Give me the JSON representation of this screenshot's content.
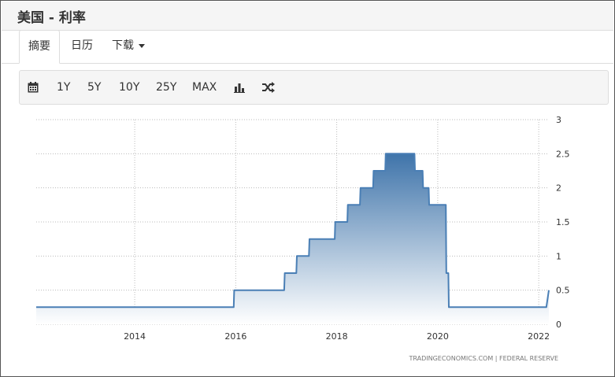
{
  "header": {
    "title": "美国 - 利率"
  },
  "tabs": [
    {
      "label": "摘要",
      "active": true
    },
    {
      "label": "日历",
      "active": false
    },
    {
      "label": "下载",
      "active": false,
      "dropdown": true
    }
  ],
  "toolbar": {
    "calendar_icon": "calendar-icon",
    "ranges": [
      "1Y",
      "5Y",
      "10Y",
      "25Y",
      "MAX"
    ],
    "bar_chart_icon": "bar-chart-icon",
    "shuffle_icon": "shuffle-icon"
  },
  "colors": {
    "line": "#4a7fb5",
    "fill_top": "#3f74aa",
    "fill_bottom": "#ffffff",
    "grid": "#bbbbbb"
  },
  "chart_data": {
    "type": "area",
    "x_ticks": [
      "2014",
      "2016",
      "2018",
      "2020",
      "2022"
    ],
    "y_ticks": [
      "0",
      "0.5",
      "1",
      "1.5",
      "2",
      "2.5",
      "3"
    ],
    "xlim": [
      2012.05,
      2022.2
    ],
    "ylim": [
      0,
      3
    ],
    "grid": true,
    "source": "TRADINGECONOMICS.COM  |  FEDERAL RESERVE",
    "series": [
      {
        "x": [
          2012.05,
          2015.96,
          2015.97,
          2016.96,
          2016.97,
          2017.2,
          2017.21,
          2017.45,
          2017.46,
          2017.96,
          2017.97,
          2018.21,
          2018.22,
          2018.46,
          2018.47,
          2018.72,
          2018.73,
          2018.96,
          2018.97,
          2019.54,
          2019.55,
          2019.7,
          2019.71,
          2019.82,
          2019.83,
          2020.16,
          2020.17,
          2020.21,
          2020.22,
          2022.15,
          2022.2
        ],
        "y": [
          0.25,
          0.25,
          0.5,
          0.5,
          0.75,
          0.75,
          1.0,
          1.0,
          1.25,
          1.25,
          1.5,
          1.5,
          1.75,
          1.75,
          2.0,
          2.0,
          2.25,
          2.25,
          2.5,
          2.5,
          2.25,
          2.25,
          2.0,
          2.0,
          1.75,
          1.75,
          0.75,
          0.75,
          0.25,
          0.25,
          0.5
        ]
      }
    ]
  }
}
